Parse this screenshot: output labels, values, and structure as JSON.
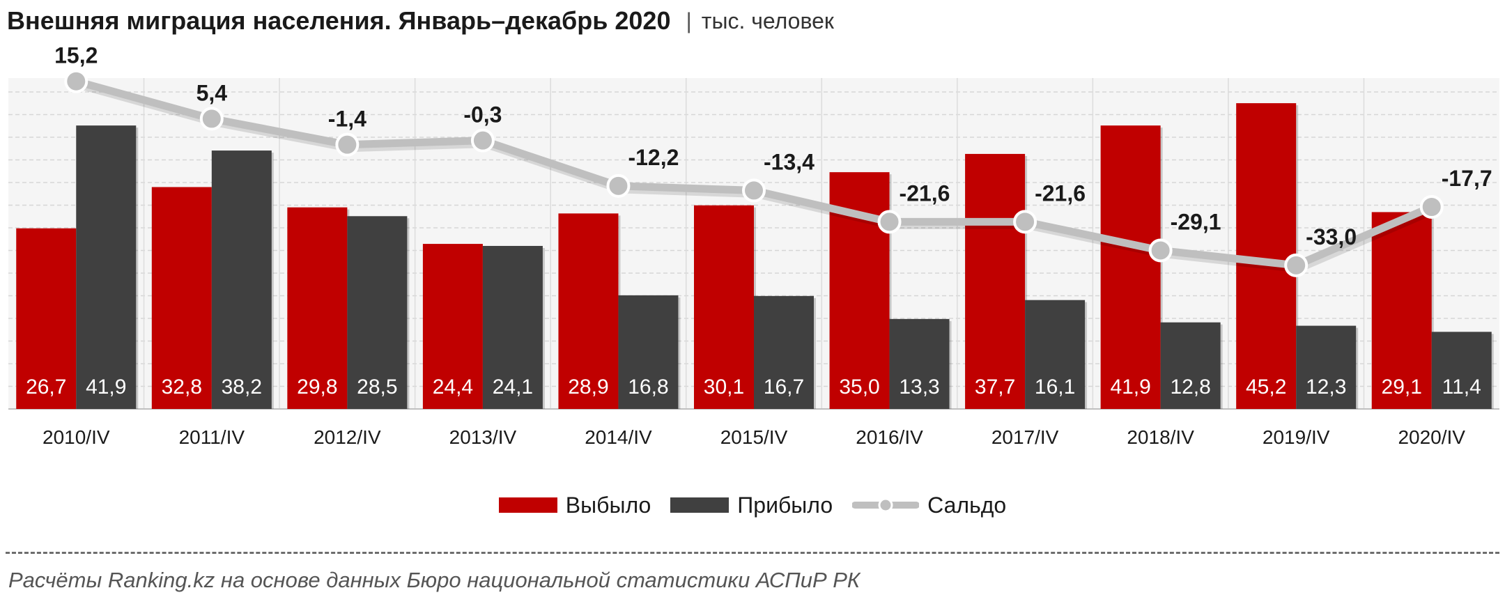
{
  "header": {
    "title": "Внешняя миграция населения. Январь–декабрь 2020",
    "separator": "|",
    "unit": "тыс. человек"
  },
  "chart_data": {
    "type": "bar",
    "categories": [
      "2010/IV",
      "2011/IV",
      "2012/IV",
      "2013/IV",
      "2014/IV",
      "2015/IV",
      "2016/IV",
      "2017/IV",
      "2018/IV",
      "2019/IV",
      "2020/IV"
    ],
    "series": [
      {
        "name": "Выбыло",
        "type": "bar",
        "color": "#c00000",
        "values": [
          26.7,
          32.8,
          29.8,
          24.4,
          28.9,
          30.1,
          35.0,
          37.7,
          41.9,
          45.2,
          29.1
        ],
        "labels": [
          "26,7",
          "32,8",
          "29,8",
          "24,4",
          "28,9",
          "30,1",
          "35,0",
          "37,7",
          "41,9",
          "45,2",
          "29,1"
        ]
      },
      {
        "name": "Прибыло",
        "type": "bar",
        "color": "#404040",
        "values": [
          41.9,
          38.2,
          28.5,
          24.1,
          16.8,
          16.7,
          13.3,
          16.1,
          12.8,
          12.3,
          11.4
        ],
        "labels": [
          "41,9",
          "38,2",
          "28,5",
          "24,1",
          "16,8",
          "16,7",
          "13,3",
          "16,1",
          "12,8",
          "12,3",
          "11,4"
        ]
      },
      {
        "name": "Сальдо",
        "type": "line",
        "color": "#bfbfbf",
        "values": [
          15.2,
          5.4,
          -1.4,
          -0.3,
          -12.2,
          -13.4,
          -21.6,
          -21.6,
          -29.1,
          -33.0,
          -17.7
        ],
        "labels": [
          "15,2",
          "5,4",
          "-1,4",
          "-0,3",
          "-12,2",
          "-13,4",
          "-21,6",
          "-21,6",
          "-29,1",
          "-33,0",
          "-17,7"
        ]
      }
    ],
    "legend_position": "bottom",
    "grid": true
  },
  "source": "Расчёты Ranking.kz на основе данных  Бюро национальной  статистики АСПиР РК"
}
